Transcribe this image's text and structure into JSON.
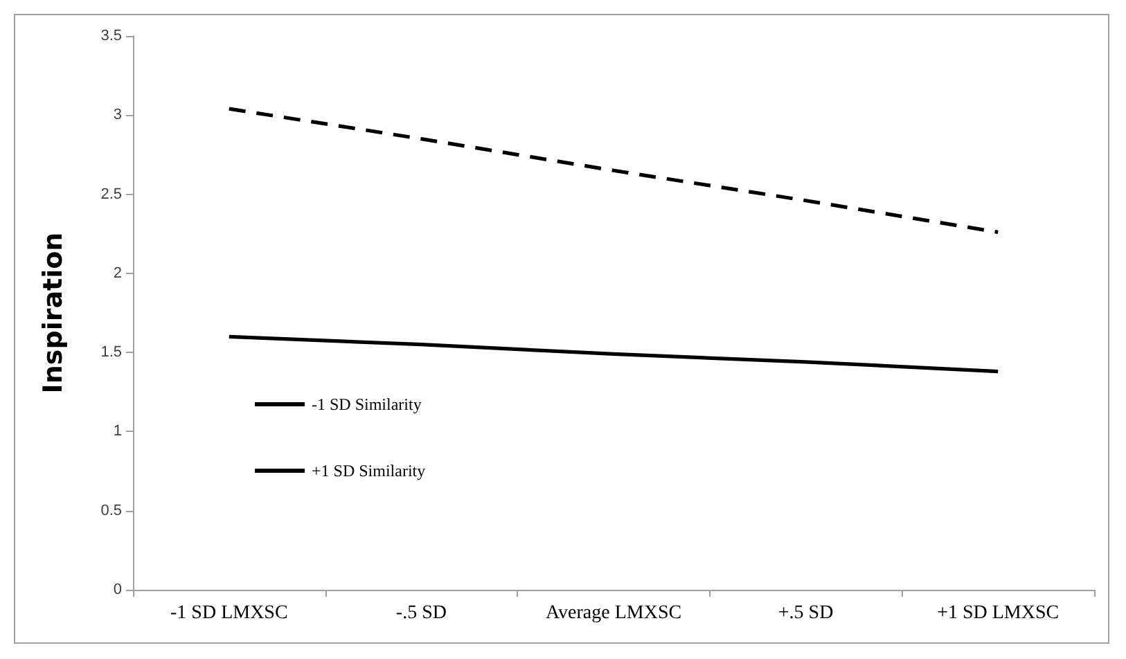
{
  "chart_data": {
    "type": "line",
    "ylabel": "Inspiration",
    "categories": [
      "-1 SD LMXSC",
      "-.5 SD",
      "Average LMXSC",
      "+.5 SD",
      "+1 SD LMXSC"
    ],
    "series": [
      {
        "name": "-1 SD Similarity",
        "color": "#000000",
        "line_style": "solid",
        "values": [
          1.6,
          1.55,
          1.49,
          1.44,
          1.38
        ]
      },
      {
        "name": "+1 SD Similarity",
        "color": "#000000",
        "line_style": "dashed",
        "values": [
          3.04,
          2.85,
          2.65,
          2.46,
          2.26
        ]
      }
    ],
    "ylim": [
      0,
      3.5
    ],
    "yticks": [
      0,
      0.5,
      1,
      1.5,
      2,
      2.5,
      3,
      3.5
    ],
    "grid": false,
    "legend": "left",
    "marker": "none"
  }
}
